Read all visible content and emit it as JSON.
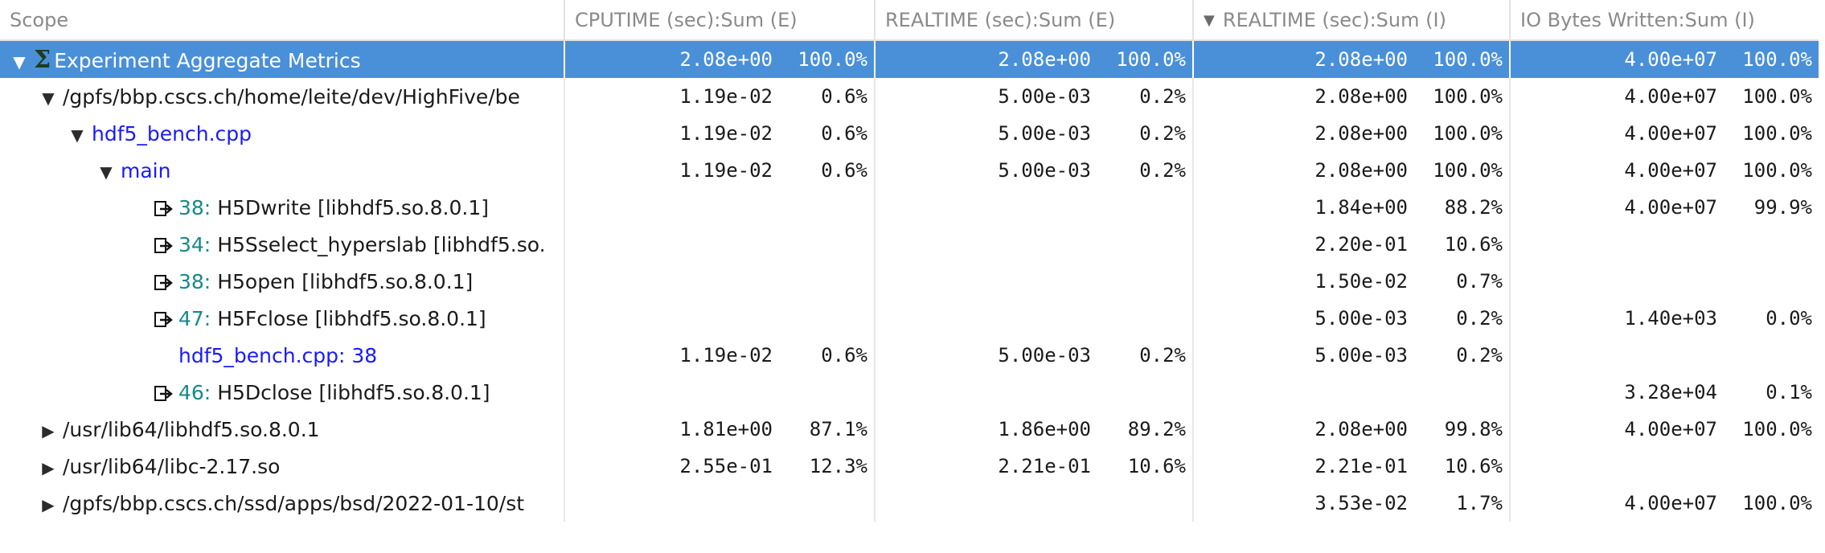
{
  "columns": {
    "scope": "Scope",
    "cputime_e": "CPUTIME (sec):Sum (E)",
    "realtime_e": "REALTIME (sec):Sum (E)",
    "realtime_i": "REALTIME (sec):Sum (I)",
    "io_written_i": "IO Bytes Written:Sum (I)"
  },
  "sort_indicator": "sort-descending-icon",
  "rows": [
    {
      "label": "Experiment Aggregate Metrics",
      "icon": "sigma-icon",
      "toggle": "expanded",
      "cpu_val": "2.08e+00",
      "cpu_pct": "100.0%",
      "rte_val": "2.08e+00",
      "rte_pct": "100.0%",
      "rti_val": "2.08e+00",
      "rti_pct": "100.0%",
      "io_val": "4.00e+07",
      "io_pct": "100.0%"
    },
    {
      "label": "/gpfs/bbp.cscs.ch/home/leite/dev/HighFive/be",
      "toggle": "expanded",
      "cpu_val": "1.19e-02",
      "cpu_pct": "0.6%",
      "rte_val": "5.00e-03",
      "rte_pct": "0.2%",
      "rti_val": "2.08e+00",
      "rti_pct": "100.0%",
      "io_val": "4.00e+07",
      "io_pct": "100.0%"
    },
    {
      "label": "hdf5_bench.cpp",
      "toggle": "expanded",
      "cpu_val": "1.19e-02",
      "cpu_pct": "0.6%",
      "rte_val": "5.00e-03",
      "rte_pct": "0.2%",
      "rti_val": "2.08e+00",
      "rti_pct": "100.0%",
      "io_val": "4.00e+07",
      "io_pct": "100.0%"
    },
    {
      "label": "main",
      "toggle": "expanded",
      "cpu_val": "1.19e-02",
      "cpu_pct": "0.6%",
      "rte_val": "5.00e-03",
      "rte_pct": "0.2%",
      "rti_val": "2.08e+00",
      "rti_pct": "100.0%",
      "io_val": "4.00e+07",
      "io_pct": "100.0%"
    },
    {
      "line": "38:",
      "label": "H5Dwrite [libhdf5.so.8.0.1]",
      "icon": "callsite-icon",
      "rti_val": "1.84e+00",
      "rti_pct": "88.2%",
      "io_val": "4.00e+07",
      "io_pct": "99.9%"
    },
    {
      "line": "34:",
      "label": "H5Sselect_hyperslab [libhdf5.so.",
      "icon": "callsite-icon",
      "rti_val": "2.20e-01",
      "rti_pct": "10.6%"
    },
    {
      "line": "38:",
      "label": "H5open [libhdf5.so.8.0.1]",
      "icon": "callsite-icon",
      "rti_val": "1.50e-02",
      "rti_pct": "0.7%"
    },
    {
      "line": "47:",
      "label": "H5Fclose [libhdf5.so.8.0.1]",
      "icon": "callsite-icon",
      "rti_val": "5.00e-03",
      "rti_pct": "0.2%",
      "io_val": "1.40e+03",
      "io_pct": "0.0%"
    },
    {
      "label": "hdf5_bench.cpp: 38",
      "cpu_val": "1.19e-02",
      "cpu_pct": "0.6%",
      "rte_val": "5.00e-03",
      "rte_pct": "0.2%",
      "rti_val": "5.00e-03",
      "rti_pct": "0.2%"
    },
    {
      "line": "46:",
      "label": "H5Dclose [libhdf5.so.8.0.1]",
      "icon": "callsite-icon",
      "io_val": "3.28e+04",
      "io_pct": "0.1%"
    },
    {
      "label": "/usr/lib64/libhdf5.so.8.0.1",
      "toggle": "collapsed",
      "cpu_val": "1.81e+00",
      "cpu_pct": "87.1%",
      "rte_val": "1.86e+00",
      "rte_pct": "89.2%",
      "rti_val": "2.08e+00",
      "rti_pct": "99.8%",
      "io_val": "4.00e+07",
      "io_pct": "100.0%"
    },
    {
      "label": "/usr/lib64/libc-2.17.so",
      "toggle": "collapsed",
      "cpu_val": "2.55e-01",
      "cpu_pct": "12.3%",
      "rte_val": "2.21e-01",
      "rte_pct": "10.6%",
      "rti_val": "2.21e-01",
      "rti_pct": "10.6%"
    },
    {
      "label": "/gpfs/bbp.cscs.ch/ssd/apps/bsd/2022-01-10/st",
      "toggle": "collapsed",
      "rti_val": "3.53e-02",
      "rti_pct": "1.7%",
      "io_val": "4.00e+07",
      "io_pct": "100.0%"
    }
  ]
}
